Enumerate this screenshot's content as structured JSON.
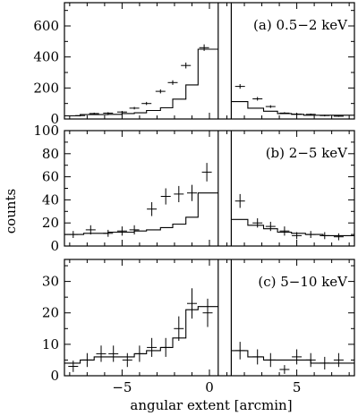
{
  "chart_data": {
    "type": "histogram-with-errorbars",
    "ylabel": "counts",
    "xlabel": "angular extent [arcmin]",
    "xlim": [
      -8.3,
      8.3
    ],
    "x_ticks": [
      -5,
      0,
      5
    ],
    "x_tick_labels": [
      "−5",
      "0",
      "5"
    ],
    "excluded_region": [
      0.5,
      1.25
    ],
    "panels": [
      {
        "label": "(a)  0.5−2 keV",
        "ylim": [
          0,
          750
        ],
        "y_ticks": [
          0,
          200,
          400,
          600
        ],
        "y_tick_labels": [
          "0",
          "200",
          "400",
          "600"
        ],
        "model_steps": [
          {
            "x0": -8.3,
            "x1": -7.4,
            "y": 20
          },
          {
            "x0": -7.4,
            "x1": -5.8,
            "y": 28
          },
          {
            "x0": -5.8,
            "x1": -5.0,
            "y": 30
          },
          {
            "x0": -5.0,
            "x1": -4.3,
            "y": 35
          },
          {
            "x0": -4.3,
            "x1": -3.6,
            "y": 40
          },
          {
            "x0": -3.6,
            "x1": -2.8,
            "y": 55
          },
          {
            "x0": -2.8,
            "x1": -2.1,
            "y": 72
          },
          {
            "x0": -2.1,
            "x1": -1.35,
            "y": 128
          },
          {
            "x0": -1.35,
            "x1": -0.65,
            "y": 220
          },
          {
            "x0": -0.65,
            "x1": 0.5,
            "y": 450
          },
          {
            "x0": 1.25,
            "x1": 2.2,
            "y": 112
          },
          {
            "x0": 2.2,
            "x1": 3.1,
            "y": 70
          },
          {
            "x0": 3.1,
            "x1": 3.9,
            "y": 50
          },
          {
            "x0": 3.9,
            "x1": 4.7,
            "y": 35
          },
          {
            "x0": 4.7,
            "x1": 5.4,
            "y": 30
          },
          {
            "x0": 5.4,
            "x1": 8.3,
            "y": 24
          }
        ],
        "points": [
          {
            "x": -7.4,
            "y": 22,
            "err": 5
          },
          {
            "x": -6.6,
            "y": 35,
            "err": 6
          },
          {
            "x": -5.8,
            "y": 38,
            "err": 6
          },
          {
            "x": -5.0,
            "y": 45,
            "err": 7
          },
          {
            "x": -4.3,
            "y": 70,
            "err": 8
          },
          {
            "x": -3.6,
            "y": 100,
            "err": 10
          },
          {
            "x": -2.8,
            "y": 178,
            "err": 13
          },
          {
            "x": -2.1,
            "y": 235,
            "err": 15
          },
          {
            "x": -1.35,
            "y": 345,
            "err": 19
          },
          {
            "x": -0.3,
            "y": 460,
            "err": 21
          },
          {
            "x": 1.75,
            "y": 210,
            "err": 15
          },
          {
            "x": 2.75,
            "y": 130,
            "err": 12
          },
          {
            "x": 3.5,
            "y": 80,
            "err": 9
          },
          {
            "x": 4.3,
            "y": 38,
            "err": 6
          },
          {
            "x": 5.0,
            "y": 32,
            "err": 6
          },
          {
            "x": 5.8,
            "y": 30,
            "err": 5
          },
          {
            "x": 6.6,
            "y": 22,
            "err": 5
          },
          {
            "x": 7.4,
            "y": 18,
            "err": 4
          }
        ]
      },
      {
        "label": "(b)  2−5 keV",
        "ylim": [
          0,
          100
        ],
        "y_ticks": [
          0,
          20,
          40,
          60,
          80,
          100
        ],
        "y_tick_labels": [
          "0",
          "20",
          "40",
          "60",
          "80",
          "100"
        ],
        "model_steps": [
          {
            "x0": -8.3,
            "x1": -7.2,
            "y": 10
          },
          {
            "x0": -7.2,
            "x1": -5.8,
            "y": 11
          },
          {
            "x0": -5.8,
            "x1": -4.3,
            "y": 12
          },
          {
            "x0": -4.3,
            "x1": -3.6,
            "y": 13
          },
          {
            "x0": -3.6,
            "x1": -2.8,
            "y": 14
          },
          {
            "x0": -2.8,
            "x1": -2.1,
            "y": 16
          },
          {
            "x0": -2.1,
            "x1": -1.35,
            "y": 19
          },
          {
            "x0": -1.35,
            "x1": -0.65,
            "y": 25
          },
          {
            "x0": -0.65,
            "x1": 0.5,
            "y": 46
          },
          {
            "x0": 1.25,
            "x1": 2.2,
            "y": 23
          },
          {
            "x0": 2.2,
            "x1": 3.1,
            "y": 18
          },
          {
            "x0": 3.1,
            "x1": 3.9,
            "y": 15
          },
          {
            "x0": 3.9,
            "x1": 4.7,
            "y": 12
          },
          {
            "x0": 4.7,
            "x1": 5.5,
            "y": 11
          },
          {
            "x0": 5.5,
            "x1": 6.5,
            "y": 10
          },
          {
            "x0": 6.5,
            "x1": 8.3,
            "y": 9
          }
        ],
        "points": [
          {
            "x": -7.8,
            "y": 10,
            "err": 3
          },
          {
            "x": -6.8,
            "y": 14,
            "err": 4
          },
          {
            "x": -5.8,
            "y": 11,
            "err": 3
          },
          {
            "x": -5.0,
            "y": 13,
            "err": 4
          },
          {
            "x": -4.3,
            "y": 14,
            "err": 4
          },
          {
            "x": -3.3,
            "y": 32,
            "err": 6
          },
          {
            "x": -2.5,
            "y": 43,
            "err": 7
          },
          {
            "x": -1.75,
            "y": 45,
            "err": 7
          },
          {
            "x": -1.0,
            "y": 46,
            "err": 7
          },
          {
            "x": -0.15,
            "y": 64,
            "err": 8
          },
          {
            "x": 1.75,
            "y": 39,
            "err": 6
          },
          {
            "x": 2.75,
            "y": 20,
            "err": 4
          },
          {
            "x": 3.5,
            "y": 17,
            "err": 4
          },
          {
            "x": 4.3,
            "y": 13,
            "err": 4
          },
          {
            "x": 5.0,
            "y": 9,
            "err": 3
          },
          {
            "x": 5.8,
            "y": 10,
            "err": 3
          },
          {
            "x": 6.6,
            "y": 9,
            "err": 3
          },
          {
            "x": 7.4,
            "y": 8,
            "err": 3
          }
        ]
      },
      {
        "label": "(c)  5−10 keV",
        "ylim": [
          0,
          37
        ],
        "y_ticks": [
          0,
          10,
          20,
          30
        ],
        "y_tick_labels": [
          "0",
          "10",
          "20",
          "30"
        ],
        "model_steps": [
          {
            "x0": -8.3,
            "x1": -7.4,
            "y": 4
          },
          {
            "x0": -7.4,
            "x1": -6.6,
            "y": 5
          },
          {
            "x0": -6.6,
            "x1": -5.0,
            "y": 6
          },
          {
            "x0": -5.0,
            "x1": -4.3,
            "y": 6
          },
          {
            "x0": -4.3,
            "x1": -3.6,
            "y": 7
          },
          {
            "x0": -3.6,
            "x1": -2.8,
            "y": 8
          },
          {
            "x0": -2.8,
            "x1": -2.1,
            "y": 9
          },
          {
            "x0": -2.1,
            "x1": -1.35,
            "y": 12
          },
          {
            "x0": -1.35,
            "x1": -0.65,
            "y": 21
          },
          {
            "x0": -0.65,
            "x1": 0.5,
            "y": 22
          },
          {
            "x0": 1.25,
            "x1": 2.2,
            "y": 8
          },
          {
            "x0": 2.2,
            "x1": 3.1,
            "y": 6
          },
          {
            "x0": 3.1,
            "x1": 4.3,
            "y": 5
          },
          {
            "x0": 4.3,
            "x1": 5.8,
            "y": 5
          },
          {
            "x0": 5.8,
            "x1": 8.3,
            "y": 4
          }
        ],
        "points": [
          {
            "x": -7.8,
            "y": 3,
            "err": 1.8
          },
          {
            "x": -7.0,
            "y": 5,
            "err": 2.2
          },
          {
            "x": -6.2,
            "y": 7,
            "err": 2.6
          },
          {
            "x": -5.5,
            "y": 7,
            "err": 2.6
          },
          {
            "x": -4.7,
            "y": 5,
            "err": 2.2
          },
          {
            "x": -4.0,
            "y": 7,
            "err": 2.6
          },
          {
            "x": -3.3,
            "y": 9,
            "err": 3
          },
          {
            "x": -2.5,
            "y": 9,
            "err": 3
          },
          {
            "x": -1.75,
            "y": 15,
            "err": 3.9
          },
          {
            "x": -1.0,
            "y": 23,
            "err": 4.8
          },
          {
            "x": -0.1,
            "y": 20,
            "err": 4.5
          },
          {
            "x": 1.75,
            "y": 8,
            "err": 2.8
          },
          {
            "x": 2.75,
            "y": 6,
            "err": 2.4
          },
          {
            "x": 3.5,
            "y": 5,
            "err": 2.2
          },
          {
            "x": 4.3,
            "y": 2,
            "err": 1.4
          },
          {
            "x": 5.0,
            "y": 6,
            "err": 2.4
          },
          {
            "x": 5.8,
            "y": 5,
            "err": 2.2
          },
          {
            "x": 6.6,
            "y": 4,
            "err": 2
          },
          {
            "x": 7.4,
            "y": 5,
            "err": 2.2
          }
        ]
      }
    ]
  }
}
